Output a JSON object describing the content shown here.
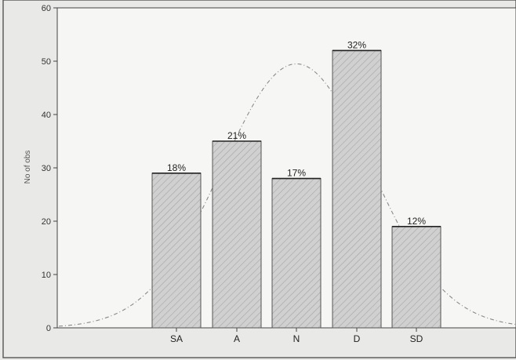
{
  "chart_data": {
    "type": "bar",
    "categories": [
      "SA",
      "A",
      "N",
      "D",
      "SD"
    ],
    "values": [
      29,
      35,
      28,
      52,
      19
    ],
    "data_labels": [
      "18%",
      "21%",
      "17%",
      "32%",
      "12%"
    ],
    "ylabel": "No of obs",
    "xlabel": "",
    "ylim": [
      0,
      60
    ],
    "yticks": [
      0,
      10,
      20,
      30,
      40,
      50,
      60
    ],
    "grid": false,
    "overlay": "normal-curve",
    "colors": {
      "bar_fill": "#d0d0d0",
      "bar_stroke": "#555555",
      "hatch": "#9a9a9a",
      "curve": "#8a8a8a",
      "axis": "#444444",
      "plot_bg": "#f6f6f4"
    }
  }
}
